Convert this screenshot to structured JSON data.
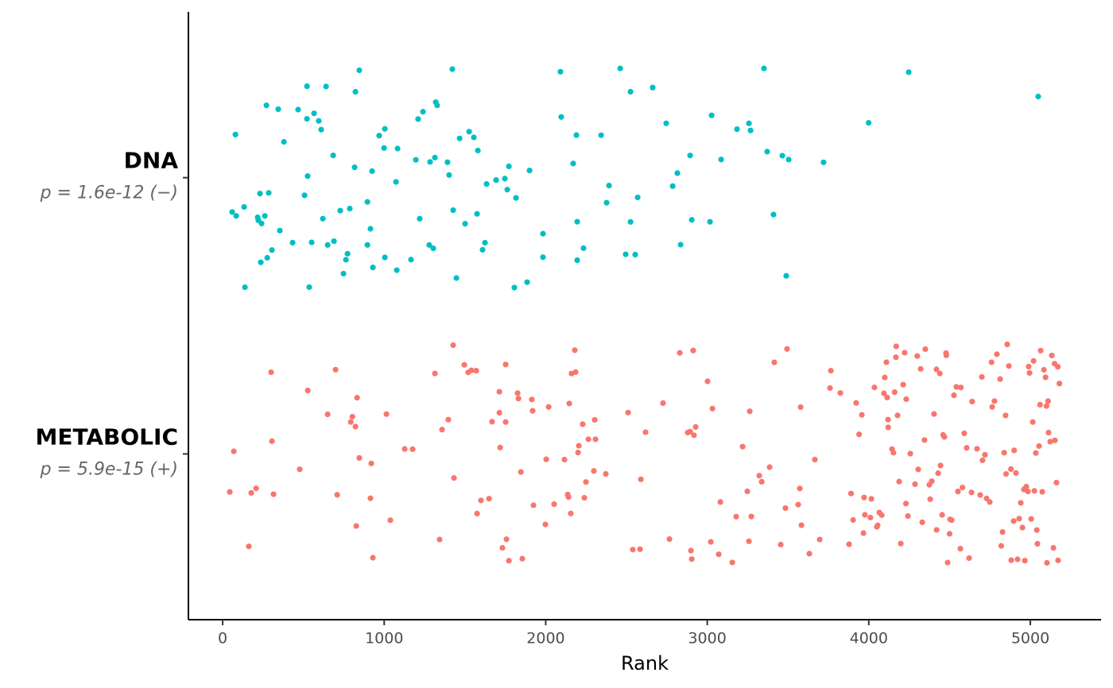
{
  "chart_data": {
    "type": "strip",
    "x_label": "Rank",
    "xlim": [
      -212,
      5438
    ],
    "xticks": [
      0,
      1000,
      2000,
      3000,
      4000,
      5000
    ],
    "series": [
      {
        "name": "DNA",
        "note": "p = 1.6e-12 (−)",
        "color": "#00BFC4",
        "values": [
          59,
          79,
          133,
          138,
          217,
          261,
          271,
          236,
          241,
          305,
          354,
          379,
          433,
          467,
          507,
          522,
          566,
          689,
          763,
          773,
          822,
          925,
          915,
          999,
          1004,
          1083,
          1078,
          1166,
          1196,
          1284,
          1304,
          1328,
          1319,
          1555,
          1580,
          1747,
          1885,
          1900,
          1983,
          2096,
          2170,
          2195,
          2234,
          2343,
          2392,
          2495,
          2525,
          2525,
          2569,
          2662,
          2904,
          2894,
          3017,
          3258,
          3371,
          3465,
          3504,
          3489,
          3720,
          4247,
          3999,
          5049,
          3410,
          3351,
          3268,
          3184,
          3086,
          3027,
          2835,
          2815,
          2786,
          2554,
          2377,
          2195,
          2091,
          1762,
          1772,
          1693,
          1575,
          1526,
          1402,
          1447,
          1240,
          1073,
          930,
          896,
          846,
          787,
          728,
          684,
          650,
          620,
          610,
          551,
          536,
          526,
          344,
          285,
          84,
          276,
          231,
          221,
          522,
          748,
          640,
          595,
          817,
          896,
          969,
          1004,
          1210,
          1279,
          1314,
          1392,
          1422,
          1467,
          1501,
          1609,
          1624,
          1806,
          1816,
          1983,
          2190,
          2461,
          2746,
          1634,
          1427,
          1220
        ]
      },
      {
        "name": "METABOLIC",
        "note": "p = 5.9e-15 (+)",
        "color": "#F8766D",
        "values": [
          44,
          69,
          207,
          162,
          315,
          300,
          477,
          527,
          177,
          305,
          650,
          709,
          793,
          822,
          832,
          803,
          699,
          920,
          930,
          915,
          846,
          827,
          1038,
          1014,
          1127,
          1176,
          1314,
          1343,
          1397,
          1427,
          1432,
          1358,
          1496,
          1520,
          1540,
          1570,
          1575,
          1599,
          1649,
          1668,
          1713,
          1718,
          1732,
          1713,
          1752,
          1757,
          1752,
          1772,
          1826,
          1831,
          1846,
          1855,
          1914,
          1924,
          1919,
          1998,
          2018,
          2003,
          2052,
          2116,
          2141,
          2136,
          2146,
          2160,
          2155,
          2180,
          2185,
          2200,
          2205,
          2229,
          2239,
          2249,
          2298,
          2303,
          2308,
          2264,
          2372,
          2510,
          2539,
          2584,
          2589,
          2618,
          2766,
          2726,
          2830,
          2879,
          2894,
          2899,
          2904,
          2913,
          2918,
          2928,
          3002,
          3022,
          3032,
          3071,
          3081,
          3155,
          3179,
          3219,
          3248,
          3258,
          3263,
          3273,
          3322,
          3337,
          3386,
          3415,
          3455,
          3484,
          3494,
          3573,
          3578,
          3583,
          3563,
          3632,
          3666,
          3696,
          3760,
          3765,
          3824,
          3878,
          3903,
          3922,
          3957,
          3967,
          3976,
          3971,
          4016,
          4035,
          4050,
          4055,
          4065,
          4094,
          4099,
          4109,
          4114,
          4119,
          4144,
          4153,
          4168,
          4178,
          4188,
          4198,
          4213,
          4222,
          4232,
          4242,
          4257,
          4286,
          4306,
          4321,
          4331,
          4345,
          4375,
          4390,
          4404,
          4419,
          4429,
          4444,
          4454,
          4468,
          4478,
          4488,
          4503,
          4513,
          4527,
          4542,
          4552,
          4567,
          4591,
          4606,
          4621,
          4636,
          4670,
          4690,
          4704,
          4719,
          4729,
          4749,
          4764,
          4778,
          4793,
          4813,
          4828,
          4838,
          4847,
          4857,
          4867,
          4882,
          4897,
          4911,
          4921,
          4931,
          4941,
          4951,
          4966,
          4975,
          4985,
          4995,
          5005,
          5015,
          5025,
          5034,
          5044,
          5054,
          5064,
          5074,
          5084,
          5094,
          5103,
          5113,
          5123,
          5133,
          5143,
          5152,
          5162,
          5172,
          4010,
          4080,
          4120,
          4160,
          4230,
          4300,
          4350,
          4420,
          4460,
          4500,
          4580,
          4640,
          4700,
          4760,
          4850,
          4880,
          4960,
          5020,
          5060,
          5110,
          5150,
          5180,
          5170,
          5100,
          5040,
          4990,
          4900,
          4820,
          4480,
          4380,
          3890,
          3940,
          4170,
          4440,
          4570
        ]
      }
    ]
  }
}
